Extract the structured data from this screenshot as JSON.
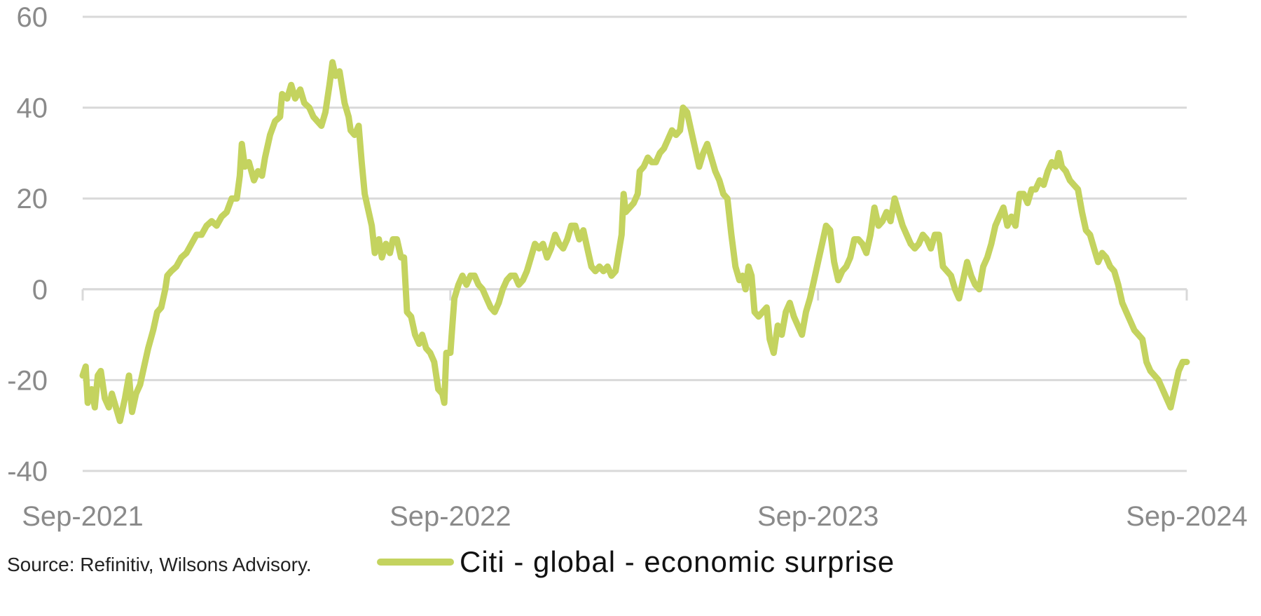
{
  "chart_data": {
    "type": "line",
    "title": "",
    "xlabel": "",
    "ylabel": "",
    "xlim": [
      "2021-09-01",
      "2024-09-01"
    ],
    "ylim": [
      -40,
      60
    ],
    "y_ticks": [
      60,
      40,
      20,
      0,
      -20,
      -40
    ],
    "y_tick_labels": [
      "60",
      "40",
      "20",
      "0",
      "-20",
      "-40"
    ],
    "x_ticks": [
      "2021-09-01",
      "2022-09-01",
      "2023-09-01",
      "2024-09-01"
    ],
    "x_tick_labels": [
      "Sep-2021",
      "Sep-2022",
      "Sep-2023",
      "Sep-2024"
    ],
    "grid": "horizontal",
    "legend_position": "bottom",
    "series": [
      {
        "name": "Citi - global - economic surprise",
        "color": "#c4d35f",
        "points": [
          [
            "2021-09-01",
            -19
          ],
          [
            "2021-09-04",
            -17
          ],
          [
            "2021-09-06",
            -25
          ],
          [
            "2021-09-10",
            -22
          ],
          [
            "2021-09-13",
            -26
          ],
          [
            "2021-09-16",
            -19
          ],
          [
            "2021-09-19",
            -18
          ],
          [
            "2021-09-23",
            -24
          ],
          [
            "2021-09-27",
            -26
          ],
          [
            "2021-09-30",
            -23
          ],
          [
            "2021-10-04",
            -26
          ],
          [
            "2021-10-08",
            -29
          ],
          [
            "2021-10-13",
            -24
          ],
          [
            "2021-10-17",
            -19
          ],
          [
            "2021-10-20",
            -27
          ],
          [
            "2021-10-24",
            -23
          ],
          [
            "2021-10-28",
            -21
          ],
          [
            "2021-11-01",
            -17
          ],
          [
            "2021-11-05",
            -13
          ],
          [
            "2021-11-10",
            -9
          ],
          [
            "2021-11-14",
            -5
          ],
          [
            "2021-11-18",
            -4
          ],
          [
            "2021-11-22",
            0
          ],
          [
            "2021-11-24",
            3
          ],
          [
            "2021-11-28",
            4
          ],
          [
            "2021-12-03",
            5
          ],
          [
            "2021-12-08",
            7
          ],
          [
            "2021-12-13",
            8
          ],
          [
            "2021-12-18",
            10
          ],
          [
            "2021-12-23",
            12
          ],
          [
            "2021-12-28",
            12
          ],
          [
            "2022-01-02",
            14
          ],
          [
            "2022-01-07",
            15
          ],
          [
            "2022-01-12",
            14
          ],
          [
            "2022-01-17",
            16
          ],
          [
            "2022-01-22",
            17
          ],
          [
            "2022-01-27",
            20
          ],
          [
            "2022-02-01",
            20
          ],
          [
            "2022-02-04",
            25
          ],
          [
            "2022-02-06",
            32
          ],
          [
            "2022-02-09",
            27
          ],
          [
            "2022-02-13",
            28
          ],
          [
            "2022-02-18",
            24
          ],
          [
            "2022-02-22",
            26
          ],
          [
            "2022-02-26",
            25
          ],
          [
            "2022-03-01",
            29
          ],
          [
            "2022-03-06",
            34
          ],
          [
            "2022-03-11",
            37
          ],
          [
            "2022-03-16",
            38
          ],
          [
            "2022-03-18",
            43
          ],
          [
            "2022-03-23",
            42
          ],
          [
            "2022-03-27",
            45
          ],
          [
            "2022-03-31",
            42
          ],
          [
            "2022-04-05",
            44
          ],
          [
            "2022-04-09",
            41
          ],
          [
            "2022-04-14",
            40
          ],
          [
            "2022-04-18",
            38
          ],
          [
            "2022-04-22",
            37
          ],
          [
            "2022-04-26",
            36
          ],
          [
            "2022-04-30",
            39
          ],
          [
            "2022-05-04",
            45
          ],
          [
            "2022-05-07",
            50
          ],
          [
            "2022-05-10",
            47
          ],
          [
            "2022-05-14",
            48
          ],
          [
            "2022-05-19",
            41
          ],
          [
            "2022-05-23",
            38
          ],
          [
            "2022-05-25",
            35
          ],
          [
            "2022-05-29",
            34
          ],
          [
            "2022-06-02",
            36
          ],
          [
            "2022-06-05",
            28
          ],
          [
            "2022-06-08",
            21
          ],
          [
            "2022-06-11",
            18
          ],
          [
            "2022-06-15",
            14
          ],
          [
            "2022-06-18",
            8
          ],
          [
            "2022-06-22",
            11
          ],
          [
            "2022-06-25",
            7
          ],
          [
            "2022-06-29",
            10
          ],
          [
            "2022-07-03",
            8
          ],
          [
            "2022-07-06",
            11
          ],
          [
            "2022-07-10",
            11
          ],
          [
            "2022-07-14",
            7
          ],
          [
            "2022-07-17",
            7
          ],
          [
            "2022-07-20",
            -5
          ],
          [
            "2022-07-24",
            -6
          ],
          [
            "2022-07-28",
            -10
          ],
          [
            "2022-08-01",
            -12
          ],
          [
            "2022-08-04",
            -10
          ],
          [
            "2022-08-08",
            -13
          ],
          [
            "2022-08-12",
            -14
          ],
          [
            "2022-08-16",
            -16
          ],
          [
            "2022-08-20",
            -22
          ],
          [
            "2022-08-24",
            -23
          ],
          [
            "2022-08-26",
            -25
          ],
          [
            "2022-08-28",
            -14
          ],
          [
            "2022-09-01",
            -14
          ],
          [
            "2022-09-03",
            -8
          ],
          [
            "2022-09-05",
            -2
          ],
          [
            "2022-09-09",
            1
          ],
          [
            "2022-09-13",
            3
          ],
          [
            "2022-09-17",
            1
          ],
          [
            "2022-09-21",
            3
          ],
          [
            "2022-09-25",
            3
          ],
          [
            "2022-09-29",
            1
          ],
          [
            "2022-10-03",
            0
          ],
          [
            "2022-10-07",
            -2
          ],
          [
            "2022-10-11",
            -4
          ],
          [
            "2022-10-15",
            -5
          ],
          [
            "2022-10-19",
            -3
          ],
          [
            "2022-10-23",
            0
          ],
          [
            "2022-10-27",
            2
          ],
          [
            "2022-10-31",
            3
          ],
          [
            "2022-11-04",
            3
          ],
          [
            "2022-11-08",
            1
          ],
          [
            "2022-11-12",
            2
          ],
          [
            "2022-11-16",
            4
          ],
          [
            "2022-11-20",
            7
          ],
          [
            "2022-11-24",
            10
          ],
          [
            "2022-11-28",
            9
          ],
          [
            "2022-12-02",
            10
          ],
          [
            "2022-12-06",
            7
          ],
          [
            "2022-12-10",
            9
          ],
          [
            "2022-12-14",
            12
          ],
          [
            "2022-12-18",
            10
          ],
          [
            "2022-12-22",
            9
          ],
          [
            "2022-12-26",
            11
          ],
          [
            "2022-12-30",
            14
          ],
          [
            "2023-01-03",
            14
          ],
          [
            "2023-01-07",
            11
          ],
          [
            "2023-01-11",
            13
          ],
          [
            "2023-01-15",
            9
          ],
          [
            "2023-01-19",
            5
          ],
          [
            "2023-01-23",
            4
          ],
          [
            "2023-01-27",
            5
          ],
          [
            "2023-01-31",
            4
          ],
          [
            "2023-02-04",
            5
          ],
          [
            "2023-02-08",
            3
          ],
          [
            "2023-02-12",
            4
          ],
          [
            "2023-02-15",
            8
          ],
          [
            "2023-02-18",
            12
          ],
          [
            "2023-02-20",
            21
          ],
          [
            "2023-02-22",
            17
          ],
          [
            "2023-02-26",
            18
          ],
          [
            "2023-03-02",
            19
          ],
          [
            "2023-03-06",
            21
          ],
          [
            "2023-03-08",
            26
          ],
          [
            "2023-03-12",
            27
          ],
          [
            "2023-03-16",
            29
          ],
          [
            "2023-03-20",
            28
          ],
          [
            "2023-03-24",
            28
          ],
          [
            "2023-03-28",
            30
          ],
          [
            "2023-04-01",
            31
          ],
          [
            "2023-04-05",
            33
          ],
          [
            "2023-04-09",
            35
          ],
          [
            "2023-04-13",
            34
          ],
          [
            "2023-04-17",
            35
          ],
          [
            "2023-04-20",
            40
          ],
          [
            "2023-04-24",
            39
          ],
          [
            "2023-04-28",
            35
          ],
          [
            "2023-05-02",
            31
          ],
          [
            "2023-05-06",
            27
          ],
          [
            "2023-05-10",
            30
          ],
          [
            "2023-05-14",
            32
          ],
          [
            "2023-05-18",
            29
          ],
          [
            "2023-05-22",
            26
          ],
          [
            "2023-05-26",
            24
          ],
          [
            "2023-05-30",
            21
          ],
          [
            "2023-06-03",
            20
          ],
          [
            "2023-06-07",
            12
          ],
          [
            "2023-06-11",
            5
          ],
          [
            "2023-06-15",
            2
          ],
          [
            "2023-06-18",
            3
          ],
          [
            "2023-06-21",
            0
          ],
          [
            "2023-06-24",
            5
          ],
          [
            "2023-06-27",
            3
          ],
          [
            "2023-06-30",
            -5
          ],
          [
            "2023-07-04",
            -6
          ],
          [
            "2023-07-08",
            -5
          ],
          [
            "2023-07-12",
            -4
          ],
          [
            "2023-07-15",
            -11
          ],
          [
            "2023-07-19",
            -14
          ],
          [
            "2023-07-23",
            -8
          ],
          [
            "2023-07-27",
            -10
          ],
          [
            "2023-07-31",
            -5
          ],
          [
            "2023-08-04",
            -3
          ],
          [
            "2023-08-08",
            -6
          ],
          [
            "2023-08-12",
            -8
          ],
          [
            "2023-08-16",
            -10
          ],
          [
            "2023-08-20",
            -5
          ],
          [
            "2023-08-24",
            -2
          ],
          [
            "2023-08-28",
            2
          ],
          [
            "2023-09-01",
            6
          ],
          [
            "2023-09-05",
            10
          ],
          [
            "2023-09-09",
            14
          ],
          [
            "2023-09-13",
            13
          ],
          [
            "2023-09-17",
            6
          ],
          [
            "2023-09-21",
            2
          ],
          [
            "2023-09-25",
            4
          ],
          [
            "2023-09-29",
            5
          ],
          [
            "2023-10-03",
            7
          ],
          [
            "2023-10-07",
            11
          ],
          [
            "2023-10-11",
            11
          ],
          [
            "2023-10-15",
            10
          ],
          [
            "2023-10-19",
            8
          ],
          [
            "2023-10-23",
            12
          ],
          [
            "2023-10-27",
            18
          ],
          [
            "2023-10-31",
            14
          ],
          [
            "2023-11-04",
            15
          ],
          [
            "2023-11-08",
            17
          ],
          [
            "2023-11-12",
            15
          ],
          [
            "2023-11-16",
            20
          ],
          [
            "2023-11-20",
            17
          ],
          [
            "2023-11-24",
            14
          ],
          [
            "2023-11-28",
            12
          ],
          [
            "2023-12-02",
            10
          ],
          [
            "2023-12-06",
            9
          ],
          [
            "2023-12-10",
            10
          ],
          [
            "2023-12-14",
            12
          ],
          [
            "2023-12-18",
            11
          ],
          [
            "2023-12-22",
            9
          ],
          [
            "2023-12-26",
            12
          ],
          [
            "2023-12-30",
            12
          ],
          [
            "2024-01-03",
            5
          ],
          [
            "2024-01-07",
            4
          ],
          [
            "2024-01-11",
            3
          ],
          [
            "2024-01-15",
            0
          ],
          [
            "2024-01-19",
            -2
          ],
          [
            "2024-01-23",
            2
          ],
          [
            "2024-01-27",
            6
          ],
          [
            "2024-01-31",
            3
          ],
          [
            "2024-02-04",
            1
          ],
          [
            "2024-02-08",
            0
          ],
          [
            "2024-02-12",
            5
          ],
          [
            "2024-02-16",
            7
          ],
          [
            "2024-02-20",
            10
          ],
          [
            "2024-02-24",
            14
          ],
          [
            "2024-02-28",
            16
          ],
          [
            "2024-03-03",
            18
          ],
          [
            "2024-03-07",
            14
          ],
          [
            "2024-03-11",
            16
          ],
          [
            "2024-03-15",
            14
          ],
          [
            "2024-03-19",
            21
          ],
          [
            "2024-03-23",
            21
          ],
          [
            "2024-03-27",
            19
          ],
          [
            "2024-03-31",
            22
          ],
          [
            "2024-04-04",
            22
          ],
          [
            "2024-04-08",
            24
          ],
          [
            "2024-04-12",
            23
          ],
          [
            "2024-04-16",
            26
          ],
          [
            "2024-04-20",
            28
          ],
          [
            "2024-04-24",
            27
          ],
          [
            "2024-04-27",
            30
          ],
          [
            "2024-04-30",
            27
          ],
          [
            "2024-05-04",
            26
          ],
          [
            "2024-05-08",
            24
          ],
          [
            "2024-05-12",
            23
          ],
          [
            "2024-05-16",
            22
          ],
          [
            "2024-05-20",
            17
          ],
          [
            "2024-05-24",
            13
          ],
          [
            "2024-05-28",
            12
          ],
          [
            "2024-06-01",
            9
          ],
          [
            "2024-06-05",
            6
          ],
          [
            "2024-06-09",
            8
          ],
          [
            "2024-06-13",
            7
          ],
          [
            "2024-06-17",
            5
          ],
          [
            "2024-06-21",
            4
          ],
          [
            "2024-06-25",
            1
          ],
          [
            "2024-06-29",
            -3
          ],
          [
            "2024-07-03",
            -5
          ],
          [
            "2024-07-07",
            -7
          ],
          [
            "2024-07-11",
            -9
          ],
          [
            "2024-07-15",
            -10
          ],
          [
            "2024-07-19",
            -11
          ],
          [
            "2024-07-23",
            -16
          ],
          [
            "2024-07-27",
            -18
          ],
          [
            "2024-07-31",
            -19
          ],
          [
            "2024-08-04",
            -20
          ],
          [
            "2024-08-08",
            -22
          ],
          [
            "2024-08-12",
            -24
          ],
          [
            "2024-08-16",
            -26
          ],
          [
            "2024-08-20",
            -22
          ],
          [
            "2024-08-24",
            -18
          ],
          [
            "2024-08-28",
            -16
          ],
          [
            "2024-09-01",
            -16
          ]
        ]
      }
    ],
    "source_note": "Source: Refinitiv, Wilsons Advisory."
  }
}
